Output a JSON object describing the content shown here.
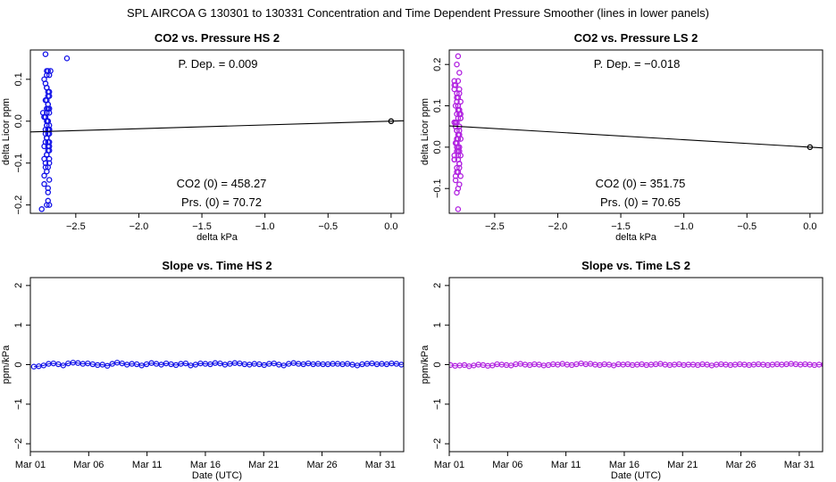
{
  "figure_title": "SPL   AIRCOA G   130301 to 130331   Concentration and Time Dependent Pressure Smoother (lines in lower panels)",
  "colors": {
    "hs": "#1010e8",
    "ls": "#b020e0",
    "line": "#000000",
    "origin": "#000000"
  },
  "chart_data": [
    {
      "id": "hs_pressure",
      "type": "scatter",
      "title": "CO2 vs. Pressure HS 2",
      "xlabel": "delta kPa",
      "ylabel": "delta Licor ppm",
      "xlim": [
        -2.86,
        0.1
      ],
      "ylim": [
        -0.22,
        0.17
      ],
      "xticks": [
        -2.5,
        -2.0,
        -1.5,
        -1.0,
        -0.5,
        0.0
      ],
      "xtick_labels": [
        "−2.5",
        "−2.0",
        "−1.5",
        "−1.0",
        "−0.5",
        "0.0"
      ],
      "yticks": [
        -0.2,
        -0.1,
        0.0,
        0.1
      ],
      "ytick_labels": [
        "−0.2",
        "−0.1",
        "0.0",
        "0.1"
      ],
      "annotation_pdep": "P. Dep. =  0.009",
      "annotation_co2": "CO2 (0) =  458.27",
      "annotation_prs": "Prs. (0) =  70.72",
      "color_key": "hs",
      "fit_line": {
        "x": [
          -2.86,
          0.1
        ],
        "y": [
          -0.0257,
          0.0009
        ]
      },
      "origin_point": {
        "x": 0.0,
        "y": 0.0
      },
      "points": {
        "x": [
          -2.57,
          -2.74,
          -2.72,
          -2.73,
          -2.71,
          -2.75,
          -2.73,
          -2.71,
          -2.72,
          -2.74,
          -2.72,
          -2.73,
          -2.71,
          -2.75,
          -2.72,
          -2.73,
          -2.71,
          -2.74,
          -2.72,
          -2.73,
          -2.71,
          -2.75,
          -2.72,
          -2.73,
          -2.71,
          -2.74,
          -2.72,
          -2.73,
          -2.71,
          -2.75,
          -2.72,
          -2.73,
          -2.71,
          -2.74,
          -2.72,
          -2.73,
          -2.71,
          -2.76,
          -2.72,
          -2.73,
          -2.71,
          -2.74,
          -2.72,
          -2.73,
          -2.71,
          -2.75,
          -2.72,
          -2.73,
          -2.71,
          -2.74,
          -2.72,
          -2.73,
          -2.71,
          -2.75,
          -2.72,
          -2.73,
          -2.71,
          -2.74,
          -2.72,
          -2.73,
          -2.71,
          -2.77,
          -2.72,
          -2.73,
          -2.71,
          -2.74,
          -2.72,
          -2.73,
          -2.7,
          -2.75
        ],
        "y": [
          0.15,
          0.16,
          0.12,
          0.12,
          0.11,
          0.1,
          0.08,
          0.07,
          0.06,
          0.05,
          0.04,
          0.03,
          0.02,
          0.01,
          0.0,
          -0.01,
          -0.02,
          -0.02,
          -0.03,
          -0.04,
          -0.05,
          -0.06,
          -0.07,
          -0.08,
          -0.09,
          -0.1,
          -0.11,
          -0.12,
          -0.14,
          -0.15,
          -0.17,
          -0.2,
          -0.2,
          0.09,
          0.07,
          0.05,
          0.03,
          0.02,
          0.0,
          -0.01,
          -0.03,
          -0.05,
          -0.06,
          -0.08,
          -0.1,
          -0.13,
          -0.19,
          0.11,
          0.06,
          0.01,
          -0.02,
          -0.04,
          -0.07,
          -0.09,
          0.04,
          0.02,
          -0.01,
          -0.03,
          -0.05,
          0.0,
          -0.02,
          -0.21,
          -0.16,
          0.08,
          -0.06,
          -0.11,
          0.03,
          -0.04,
          0.12,
          0.01
        ]
      }
    },
    {
      "id": "ls_pressure",
      "type": "scatter",
      "title": "CO2 vs. Pressure LS 2",
      "xlabel": "delta kPa",
      "ylabel": "delta Licor ppm",
      "xlim": [
        -2.86,
        0.1
      ],
      "ylim": [
        -0.16,
        0.235
      ],
      "xticks": [
        -2.5,
        -2.0,
        -1.5,
        -1.0,
        -0.5,
        0.0
      ],
      "xtick_labels": [
        "−2.5",
        "−2.0",
        "−1.5",
        "−1.0",
        "−0.5",
        "0.0"
      ],
      "yticks": [
        -0.1,
        0.0,
        0.1,
        0.2
      ],
      "ytick_labels": [
        "−0.1",
        "0.0",
        "0.1",
        "0.2"
      ],
      "annotation_pdep": "P. Dep. =  −0.018",
      "annotation_co2": "CO2 (0) =  351.75",
      "annotation_prs": "Prs. (0) =  70.65",
      "color_key": "ls",
      "fit_line": {
        "x": [
          -2.86,
          0.1
        ],
        "y": [
          0.0515,
          -0.0018
        ]
      },
      "origin_point": {
        "x": 0.0,
        "y": 0.0
      },
      "points": {
        "x": [
          -2.79,
          -2.8,
          -2.78,
          -2.79,
          -2.81,
          -2.78,
          -2.8,
          -2.79,
          -2.77,
          -2.81,
          -2.78,
          -2.8,
          -2.79,
          -2.82,
          -2.78,
          -2.8,
          -2.79,
          -2.77,
          -2.81,
          -2.78,
          -2.8,
          -2.79,
          -2.82,
          -2.78,
          -2.8,
          -2.79,
          -2.77,
          -2.81,
          -2.78,
          -2.8,
          -2.79,
          -2.82,
          -2.78,
          -2.8,
          -2.79,
          -2.77,
          -2.81,
          -2.78,
          -2.8,
          -2.79,
          -2.82,
          -2.78,
          -2.8,
          -2.79,
          -2.77,
          -2.81,
          -2.78,
          -2.8,
          -2.79,
          -2.82,
          -2.78,
          -2.8,
          -2.79,
          -2.77,
          -2.81,
          -2.78,
          -2.8,
          -2.79,
          -2.82,
          -2.78,
          -2.8,
          -2.79,
          -2.77,
          -2.81,
          -2.78,
          -2.8,
          -2.79,
          -2.82,
          -2.78,
          -2.8
        ],
        "y": [
          0.22,
          0.2,
          0.18,
          0.16,
          0.15,
          0.14,
          0.13,
          0.12,
          0.11,
          0.1,
          0.09,
          0.08,
          0.07,
          0.06,
          0.05,
          0.04,
          0.03,
          0.02,
          0.01,
          0.0,
          -0.01,
          -0.02,
          -0.03,
          -0.04,
          -0.05,
          -0.06,
          -0.07,
          -0.08,
          -0.09,
          -0.11,
          -0.15,
          0.15,
          0.13,
          0.11,
          0.09,
          0.07,
          0.05,
          0.03,
          0.01,
          -0.01,
          -0.03,
          -0.05,
          0.12,
          0.1,
          0.08,
          0.06,
          0.04,
          0.02,
          0.0,
          -0.02,
          -0.04,
          -0.06,
          0.1,
          0.07,
          0.05,
          0.03,
          0.01,
          -0.03,
          0.14,
          0.09,
          0.06,
          0.02,
          -0.02,
          -0.07,
          0.08,
          0.04,
          -0.1,
          0.16,
          -0.01,
          0.0
        ]
      }
    },
    {
      "id": "hs_time",
      "type": "line",
      "title": "Slope vs. Time HS 2",
      "xlabel": "Date (UTC)",
      "ylabel": "ppm/kPa",
      "xlim": [
        0.0,
        32.0
      ],
      "ylim": [
        -2.2,
        2.2
      ],
      "xticks": [
        0,
        5,
        10,
        15,
        20,
        25,
        30
      ],
      "xtick_labels": [
        "Mar 01",
        "Mar 06",
        "Mar 11",
        "Mar 16",
        "Mar 21",
        "Mar 26",
        "Mar 31"
      ],
      "yticks": [
        -2,
        -1,
        0,
        1,
        2
      ],
      "ytick_labels": [
        "−2",
        "−1",
        "0",
        "1",
        "2"
      ],
      "color_key": "hs",
      "x_start": 0.3,
      "x_step": 0.42,
      "values": [
        -0.05,
        -0.04,
        -0.02,
        0.02,
        0.03,
        0.01,
        -0.02,
        0.03,
        0.05,
        0.04,
        0.02,
        0.03,
        0.01,
        -0.01,
        0.0,
        -0.03,
        0.02,
        0.05,
        0.03,
        0.0,
        0.02,
        0.01,
        -0.02,
        0.01,
        0.04,
        0.02,
        0.0,
        0.03,
        0.01,
        -0.01,
        0.02,
        0.03,
        -0.02,
        0.0,
        0.03,
        0.02,
        0.01,
        0.04,
        0.03,
        0.0,
        0.02,
        0.04,
        0.03,
        0.01,
        0.0,
        0.02,
        0.01,
        -0.01,
        0.02,
        0.03,
        0.0,
        -0.02,
        0.02,
        0.04,
        0.02,
        0.01,
        0.03,
        0.01,
        0.02,
        0.01,
        0.01,
        0.02,
        0.02,
        0.01,
        0.02,
        0.0,
        -0.02,
        0.01,
        0.02,
        0.03,
        0.01,
        0.02,
        0.01,
        0.03,
        0.02,
        0.0,
        0.03,
        0.04,
        0.02,
        0.01,
        0.03,
        0.02,
        0.04,
        0.01,
        0.0
      ]
    },
    {
      "id": "ls_time",
      "type": "line",
      "title": "Slope vs. Time LS 2",
      "xlabel": "Date (UTC)",
      "ylabel": "ppm/kPa",
      "xlim": [
        0.0,
        32.0
      ],
      "ylim": [
        -2.2,
        2.2
      ],
      "xticks": [
        0,
        5,
        10,
        15,
        20,
        25,
        30
      ],
      "xtick_labels": [
        "Mar 01",
        "Mar 06",
        "Mar 11",
        "Mar 16",
        "Mar 21",
        "Mar 26",
        "Mar 31"
      ],
      "yticks": [
        -2,
        -1,
        0,
        1,
        2
      ],
      "ytick_labels": [
        "−2",
        "−1",
        "0",
        "1",
        "2"
      ],
      "color_key": "ls",
      "x_start": 0.1,
      "x_step": 0.4,
      "values": [
        -0.01,
        -0.03,
        -0.02,
        -0.01,
        -0.04,
        -0.02,
        0.0,
        -0.01,
        -0.03,
        -0.02,
        0.01,
        0.0,
        -0.01,
        -0.02,
        0.01,
        0.02,
        0.0,
        -0.01,
        0.01,
        0.0,
        -0.02,
        -0.01,
        0.01,
        0.0,
        0.02,
        0.0,
        -0.01,
        0.01,
        0.03,
        0.01,
        0.02,
        0.0,
        -0.01,
        0.01,
        0.0,
        -0.02,
        0.01,
        0.0,
        0.01,
        -0.01,
        0.0,
        0.01,
        -0.01,
        0.0,
        0.01,
        0.02,
        0.0,
        -0.01,
        0.0,
        0.01,
        -0.01,
        0.0,
        0.0,
        -0.01,
        0.01,
        0.0,
        -0.02,
        0.0,
        0.01,
        0.0,
        -0.01,
        0.0,
        0.01,
        0.0,
        -0.01,
        0.0,
        0.01,
        0.0,
        -0.01,
        0.0,
        0.01,
        0.0,
        0.01,
        0.02,
        0.01,
        0.0,
        0.01,
        0.0,
        -0.01,
        0.0,
        0.0,
        -0.01,
        -0.01,
        0.0,
        0.01,
        0.0,
        -0.01,
        0.0,
        -0.02,
        0.01,
        0.0,
        0.01,
        -0.01,
        0.0,
        0.01,
        -0.01,
        0.0,
        -0.01,
        0.02,
        0.0
      ]
    }
  ]
}
